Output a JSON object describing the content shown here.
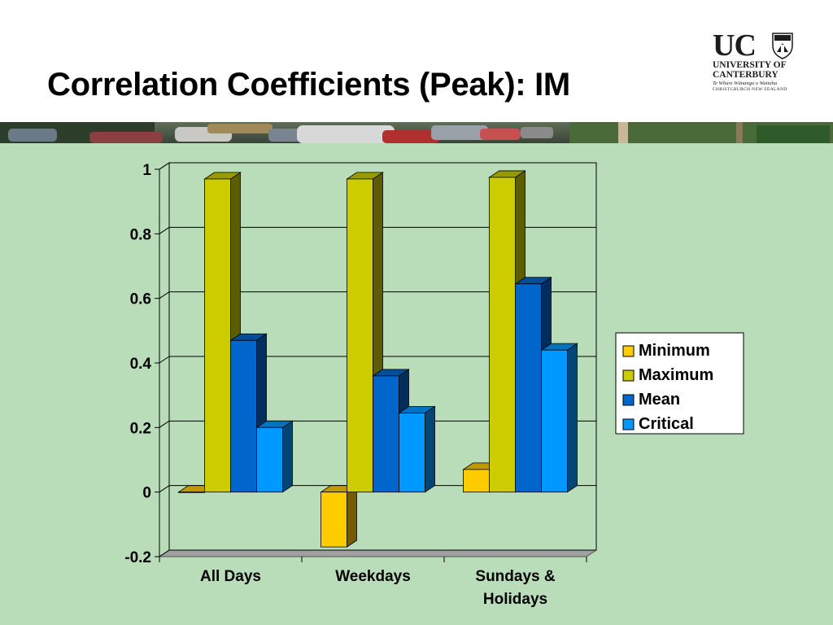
{
  "slide": {
    "title": "Correlation Coefficients (Peak): IM"
  },
  "logo": {
    "letters": "UC",
    "line1": "UNIVERSITY OF",
    "line2": "CANTERBURY",
    "line3": "Te Whare Wānanga o Waitaha",
    "line4": "CHRISTCHURCH NEW ZEALAND"
  },
  "colors": {
    "panel": "#b8ddb8",
    "Minimum": "#ffcc00",
    "Maximum": "#cccc00",
    "Mean": "#0066cc",
    "Critical": "#0099ff"
  },
  "chart_data": {
    "type": "bar",
    "style": "3d-clustered",
    "categories": [
      "All Days",
      "Weekdays",
      "Sundays & Holidays"
    ],
    "category_lines": [
      [
        "All Days"
      ],
      [
        "Weekdays"
      ],
      [
        "Sundays &",
        "Holidays"
      ]
    ],
    "series": [
      {
        "name": "Minimum",
        "values": [
          0.0,
          -0.17,
          0.07
        ]
      },
      {
        "name": "Maximum",
        "values": [
          0.97,
          0.97,
          0.975
        ]
      },
      {
        "name": "Mean",
        "values": [
          0.47,
          0.36,
          0.645
        ]
      },
      {
        "name": "Critical",
        "values": [
          0.2,
          0.245,
          0.44
        ]
      }
    ],
    "ylim": [
      -0.2,
      1
    ],
    "yticks": [
      -0.2,
      0,
      0.2,
      0.4,
      0.6,
      0.8,
      1
    ],
    "ytick_labels": [
      "-0.2",
      "0",
      "0.2",
      "0.4",
      "0.6",
      "0.8",
      "1"
    ],
    "grid": true,
    "legend": "right",
    "title": "",
    "xlabel": "",
    "ylabel": ""
  }
}
